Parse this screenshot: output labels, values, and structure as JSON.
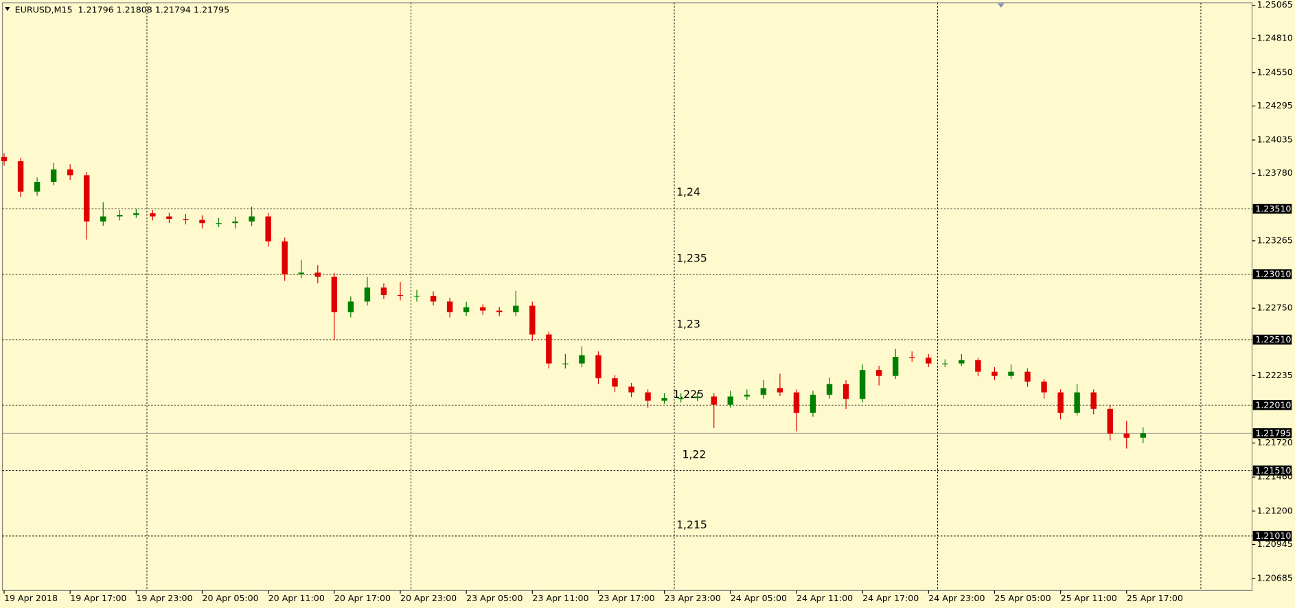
{
  "chart_data": {
    "type": "candlestick",
    "title": "EURUSD,M15  1.21796 1.21808 1.21794 1.21795",
    "open": [
      1.23905,
      1.23873,
      1.2364,
      1.23715,
      1.2381,
      1.23766,
      1.23413,
      1.23451,
      1.23463,
      1.23476,
      1.23451,
      1.23432,
      1.23425,
      1.234,
      1.234,
      1.23413,
      1.23451,
      1.23261,
      1.23009,
      1.23022,
      1.2299,
      1.22719,
      1.22801,
      1.22908,
      1.22851,
      1.22845,
      1.22845,
      1.22801,
      1.22719,
      1.22757,
      1.22732,
      1.22719,
      1.22769,
      1.22549,
      1.22328,
      1.22328,
      1.22391,
      1.22215,
      1.22151,
      1.22107,
      1.22044,
      1.22063,
      1.22063,
      1.22076,
      1.22013,
      1.22076,
      1.22088,
      1.22139,
      1.22107,
      1.2195,
      1.22088,
      1.2217,
      1.22057,
      1.22278,
      1.22233,
      1.22378,
      1.22372,
      1.22328,
      1.22328,
      1.22353,
      1.22265,
      1.22233,
      1.22265,
      1.22189,
      1.22107,
      1.2195,
      1.22107,
      1.21981,
      1.21792,
      1.21761
    ],
    "high": [
      1.23935,
      1.239,
      1.2375,
      1.2386,
      1.2385,
      1.2379,
      1.2356,
      1.235,
      1.2351,
      1.235,
      1.2348,
      1.2347,
      1.2346,
      1.2344,
      1.2345,
      1.23526,
      1.2348,
      1.2329,
      1.2312,
      1.2308,
      1.2302,
      1.2284,
      1.2299,
      1.2294,
      1.2295,
      1.2289,
      1.2288,
      1.2283,
      1.228,
      1.2278,
      1.2276,
      1.22883,
      1.228,
      1.2257,
      1.224,
      1.2246,
      1.2242,
      1.2224,
      1.2218,
      1.2213,
      1.221,
      1.221,
      1.2211,
      1.221,
      1.2212,
      1.2213,
      1.222,
      1.2225,
      1.2213,
      1.2212,
      1.2222,
      1.222,
      1.2232,
      1.2231,
      1.2244,
      1.2242,
      1.224,
      1.2236,
      1.224,
      1.2237,
      1.223,
      1.2232,
      1.2229,
      1.2221,
      1.2213,
      1.2217,
      1.2213,
      1.2201,
      1.2189,
      1.2184
    ],
    "low": [
      1.2384,
      1.236,
      1.2361,
      1.2369,
      1.2373,
      1.23274,
      1.2338,
      1.2342,
      1.2344,
      1.2342,
      1.234,
      1.2339,
      1.2336,
      1.2337,
      1.2336,
      1.2338,
      1.2322,
      1.2296,
      1.2298,
      1.2294,
      1.22505,
      1.2268,
      1.2277,
      1.2282,
      1.2281,
      1.228,
      1.2277,
      1.2268,
      1.2269,
      1.227,
      1.2269,
      1.2269,
      1.225,
      1.2229,
      1.2229,
      1.223,
      1.2217,
      1.2211,
      1.2207,
      1.2199,
      1.2202,
      1.2203,
      1.2204,
      1.21836,
      1.2199,
      1.2205,
      1.2206,
      1.2208,
      1.2181,
      1.2192,
      1.2206,
      1.2198,
      1.2203,
      1.2216,
      1.2221,
      1.2234,
      1.223,
      1.223,
      1.2231,
      1.2223,
      1.222,
      1.2221,
      1.2215,
      1.2206,
      1.219,
      1.2193,
      1.2194,
      1.2174,
      1.21678,
      1.2172
    ],
    "close": [
      1.23873,
      1.2364,
      1.23715,
      1.2381,
      1.23766,
      1.23413,
      1.23451,
      1.23463,
      1.23476,
      1.23451,
      1.23432,
      1.23425,
      1.234,
      1.234,
      1.23413,
      1.23451,
      1.23261,
      1.23009,
      1.23022,
      1.2299,
      1.22719,
      1.22801,
      1.22908,
      1.22851,
      1.22845,
      1.22845,
      1.22801,
      1.22719,
      1.22757,
      1.22732,
      1.22719,
      1.22769,
      1.22549,
      1.22328,
      1.22328,
      1.22391,
      1.22215,
      1.22151,
      1.22107,
      1.22044,
      1.22063,
      1.22063,
      1.22076,
      1.22013,
      1.22076,
      1.22088,
      1.22139,
      1.22107,
      1.2195,
      1.22088,
      1.2217,
      1.22057,
      1.22278,
      1.22233,
      1.22378,
      1.22372,
      1.22328,
      1.22328,
      1.22353,
      1.22265,
      1.22233,
      1.22265,
      1.22189,
      1.22107,
      1.2195,
      1.22107,
      1.21981,
      1.21792,
      1.21761,
      1.21795
    ],
    "up_color": "#008000",
    "down_color": "#e00000",
    "xlim": [
      -0.1,
      75.6
    ],
    "xticks": [
      {
        "value": 0,
        "label": "19 Apr 2018"
      },
      {
        "value": 4,
        "label": "19 Apr 17:00"
      },
      {
        "value": 8,
        "label": "19 Apr 23:00"
      },
      {
        "value": 12,
        "label": "20 Apr 05:00"
      },
      {
        "value": 16,
        "label": "20 Apr 11:00"
      },
      {
        "value": 20,
        "label": "20 Apr 17:00"
      },
      {
        "value": 24,
        "label": "20 Apr 23:00"
      },
      {
        "value": 28,
        "label": "23 Apr 05:00"
      },
      {
        "value": 32,
        "label": "23 Apr 11:00"
      },
      {
        "value": 36,
        "label": "23 Apr 17:00"
      },
      {
        "value": 40,
        "label": "23 Apr 23:00"
      },
      {
        "value": 44,
        "label": "24 Apr 05:00"
      },
      {
        "value": 48,
        "label": "24 Apr 11:00"
      },
      {
        "value": 52,
        "label": "24 Apr 17:00"
      },
      {
        "value": 56,
        "label": "24 Apr 23:00"
      },
      {
        "value": 60,
        "label": "25 Apr 05:00"
      },
      {
        "value": 64,
        "label": "25 Apr 11:00"
      },
      {
        "value": 68,
        "label": "25 Apr 17:00"
      }
    ],
    "xgrid": [
      8.65,
      24.65,
      40.6,
      56.55,
      72.5
    ],
    "ylim": [
      1.20594,
      1.25084
    ],
    "yticks": [
      1.25065,
      {
        "value": 1.2481,
        "label": "1.24810"
      },
      {
        "value": 1.2455,
        "label": "1.24550"
      },
      1.24295,
      1.24035,
      {
        "value": 1.2378,
        "label": "1.23780"
      },
      1.23265,
      {
        "value": 1.2275,
        "label": "1.22750"
      },
      1.22235,
      {
        "value": 1.2172,
        "label": "1.21720"
      },
      {
        "value": 1.2146,
        "label": "1.21460"
      },
      {
        "value": 1.212,
        "label": "1.21200"
      },
      1.20945,
      1.20685
    ],
    "levels": [
      {
        "value": 1.2351,
        "label": "1.23510"
      },
      {
        "value": 1.2301,
        "label": "1.23010"
      },
      {
        "value": 1.2251,
        "label": "1.22510"
      },
      {
        "value": 1.2201,
        "label": "1.22010"
      },
      {
        "value": 1.2151,
        "label": "1.21510"
      },
      {
        "value": 1.2101,
        "label": "1.21010"
      }
    ],
    "current_price": 1.21795,
    "annotations": [
      "1,24",
      "1,235",
      "1,23",
      "1,225",
      "1,22",
      "1,215"
    ],
    "grid": true
  }
}
